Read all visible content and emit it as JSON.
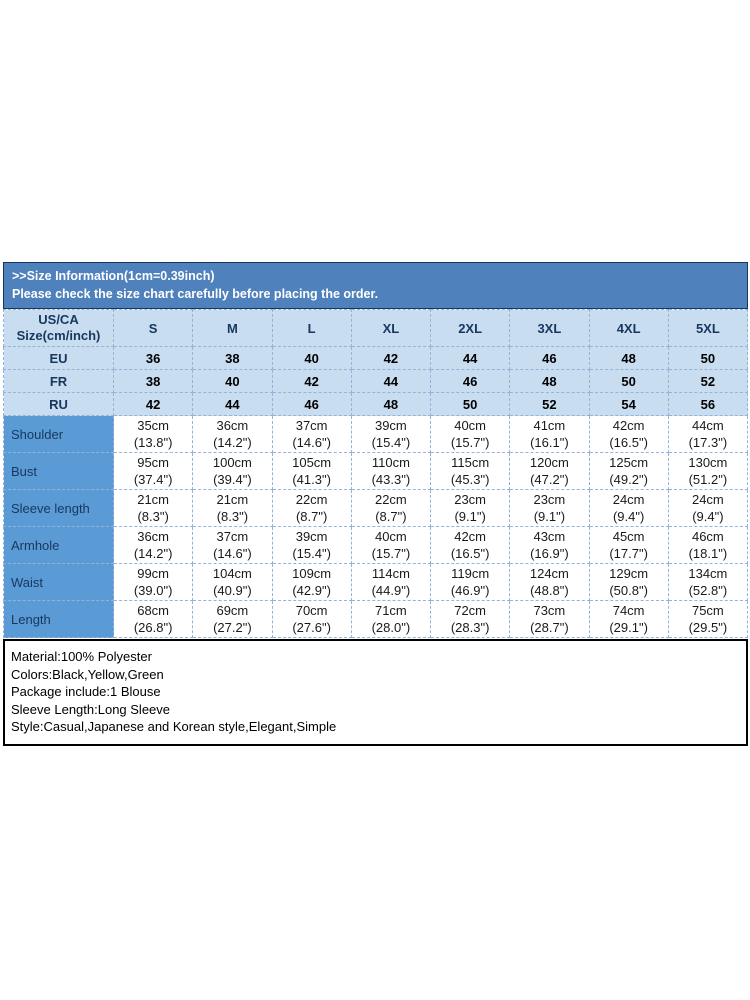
{
  "banner": {
    "line1": ">>Size Information(1cm=0.39inch)",
    "line2": "Please check the size chart carefully before placing the order."
  },
  "table": {
    "corner": {
      "line1": "US/CA",
      "line2": "Size(cm/inch)"
    },
    "sizes": [
      "S",
      "M",
      "L",
      "XL",
      "2XL",
      "3XL",
      "4XL",
      "5XL"
    ],
    "size_rows": [
      {
        "label": "EU",
        "values": [
          "36",
          "38",
          "40",
          "42",
          "44",
          "46",
          "48",
          "50"
        ]
      },
      {
        "label": "FR",
        "values": [
          "38",
          "40",
          "42",
          "44",
          "46",
          "48",
          "50",
          "52"
        ]
      },
      {
        "label": "RU",
        "values": [
          "42",
          "44",
          "46",
          "48",
          "50",
          "52",
          "54",
          "56"
        ]
      }
    ],
    "measure_rows": [
      {
        "label": "Shoulder",
        "cm": [
          "35cm",
          "36cm",
          "37cm",
          "39cm",
          "40cm",
          "41cm",
          "42cm",
          "44cm"
        ],
        "inch": [
          "(13.8\")",
          "(14.2\")",
          "(14.6\")",
          "(15.4\")",
          "(15.7\")",
          "(16.1\")",
          "(16.5\")",
          "(17.3\")"
        ]
      },
      {
        "label": "Bust",
        "cm": [
          "95cm",
          "100cm",
          "105cm",
          "110cm",
          "115cm",
          "120cm",
          "125cm",
          "130cm"
        ],
        "inch": [
          "(37.4\")",
          "(39.4\")",
          "(41.3\")",
          "(43.3\")",
          "(45.3\")",
          "(47.2\")",
          "(49.2\")",
          "(51.2\")"
        ]
      },
      {
        "label": "Sleeve length",
        "cm": [
          "21cm",
          "21cm",
          "22cm",
          "22cm",
          "23cm",
          "23cm",
          "24cm",
          "24cm"
        ],
        "inch": [
          "(8.3\")",
          "(8.3\")",
          "(8.7\")",
          "(8.7\")",
          "(9.1\")",
          "(9.1\")",
          "(9.4\")",
          "(9.4\")"
        ]
      },
      {
        "label": "Armhole",
        "cm": [
          "36cm",
          "37cm",
          "39cm",
          "40cm",
          "42cm",
          "43cm",
          "45cm",
          "46cm"
        ],
        "inch": [
          "(14.2\")",
          "(14.6\")",
          "(15.4\")",
          "(15.7\")",
          "(16.5\")",
          "(16.9\")",
          "(17.7\")",
          "(18.1\")"
        ]
      },
      {
        "label": "Waist",
        "cm": [
          "99cm",
          "104cm",
          "109cm",
          "114cm",
          "119cm",
          "124cm",
          "129cm",
          "134cm"
        ],
        "inch": [
          "(39.0\")",
          "(40.9\")",
          "(42.9\")",
          "(44.9\")",
          "(46.9\")",
          "(48.8\")",
          "(50.8\")",
          "(52.8\")"
        ]
      },
      {
        "label": "Length",
        "cm": [
          "68cm",
          "69cm",
          "70cm",
          "71cm",
          "72cm",
          "73cm",
          "74cm",
          "75cm"
        ],
        "inch": [
          "(26.8\")",
          "(27.2\")",
          "(27.6\")",
          "(28.0\")",
          "(28.3\")",
          "(28.7\")",
          "(29.1\")",
          "(29.5\")"
        ]
      }
    ]
  },
  "details": {
    "lines": [
      "Material:100% Polyester",
      "Colors:Black,Yellow,Green",
      "Package include:1 Blouse",
      "Sleeve Length:Long Sleeve",
      "Style:Casual,Japanese and Korean style,Elegant,Simple"
    ]
  },
  "colors": {
    "banner_bg": "#4f81bd",
    "banner_border": "#17375e",
    "banner_text": "#ffffff",
    "light_cell_bg": "#c9ddf1",
    "measure_label_bg": "#5b9bd5",
    "cell_border": "#95b3d7",
    "header_text": "#17375e",
    "value_text": "#000000",
    "details_border": "#000000"
  }
}
